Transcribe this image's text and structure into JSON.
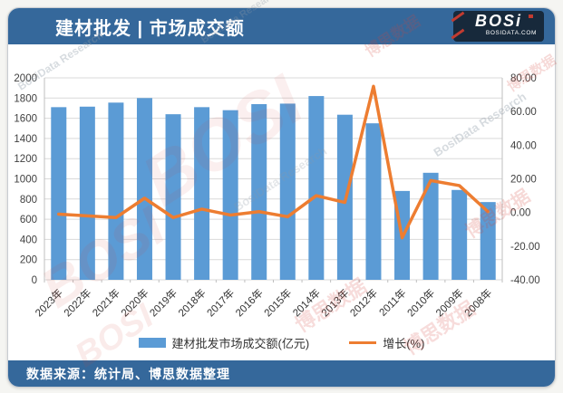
{
  "header": {
    "title": "建材批发 | 市场成交额",
    "logo": {
      "text": "BOSi",
      "subtext": "BOSIDATA.COM"
    }
  },
  "footer": {
    "source": "数据来源：统计局、博思数据整理"
  },
  "watermark": {
    "brand": "BOSI",
    "cn": "博思数据",
    "en": "BosiData Research"
  },
  "colors": {
    "header_bg": "#35689B",
    "bar": "#5B9BD5",
    "line": "#ED7D31",
    "grid": "#D9D9D9",
    "axis_line": "#BFBFBF",
    "axis_text": "#404040",
    "logo_bg": "#17293B",
    "logo_red": "#C23B30"
  },
  "chart_data": {
    "type": "bar+line combo",
    "title": "建材批发 | 市场成交额",
    "categories": [
      "2023年",
      "2022年",
      "2021年",
      "2020年",
      "2019年",
      "2018年",
      "2017年",
      "2016年",
      "2015年",
      "2014年",
      "2013年",
      "2012年",
      "2011年",
      "2010年",
      "2009年",
      "2008年"
    ],
    "series": [
      {
        "name": "建材批发市场成交额(亿元)",
        "type": "bar",
        "axis": "left",
        "values": [
          1710,
          1715,
          1755,
          1800,
          1640,
          1710,
          1680,
          1740,
          1745,
          1820,
          1635,
          1550,
          880,
          1060,
          890,
          770
        ]
      },
      {
        "name": "增长(%)",
        "type": "line",
        "axis": "right",
        "values": [
          -1,
          -2,
          -3,
          8.5,
          -3,
          2,
          -1.5,
          0.5,
          -2.5,
          10,
          6,
          75,
          -15,
          19,
          16,
          0.5
        ]
      }
    ],
    "left_axis": {
      "min": 0,
      "max": 2000,
      "step": 200,
      "ticks": [
        "2000",
        "1800",
        "1600",
        "1400",
        "1200",
        "1000",
        "800",
        "600",
        "400",
        "200",
        "0"
      ]
    },
    "right_axis": {
      "min": -40,
      "max": 80,
      "step": 20,
      "ticks": [
        "80.00",
        "60.00",
        "40.00",
        "20.00",
        "0.00",
        "-20.00",
        "-40.00"
      ]
    },
    "grid": true,
    "legend_position": "bottom"
  }
}
